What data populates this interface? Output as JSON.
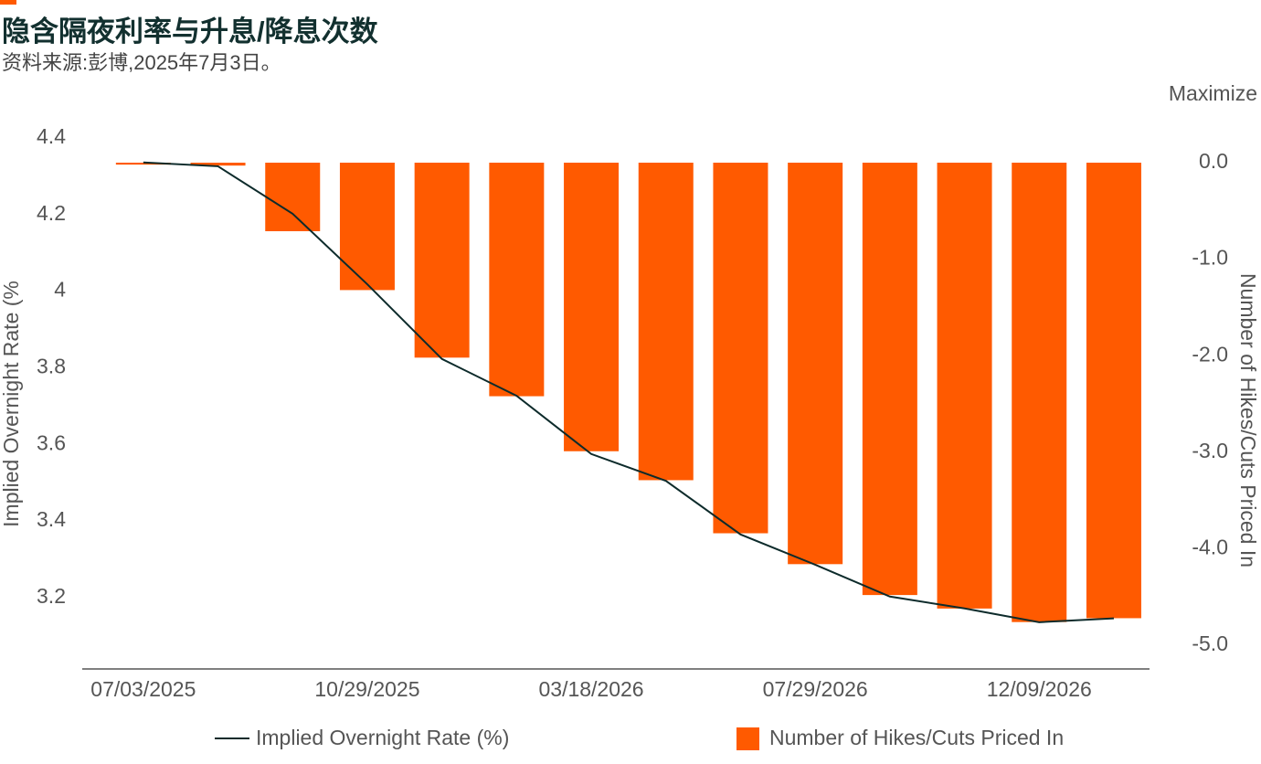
{
  "chart_data": {
    "type": "bar_line",
    "title": "隐含隔夜利率与升息/降息次数",
    "subtitle": "资料来源:彭博,2025年7月3日。",
    "button": "Maximize",
    "y_label": "Implied Overnight Rate (%",
    "y2_label": "Number of Hikes/Cuts Priced In",
    "categories": [
      "07/03/2025",
      null,
      null,
      "10/29/2025",
      null,
      null,
      "03/18/2026",
      null,
      null,
      "07/29/2026",
      null,
      null,
      "12/09/2026",
      null
    ],
    "series": [
      {
        "name": "Implied Overnight Rate (%)",
        "type": "line",
        "color": "#0d2b2b",
        "axis": "y",
        "values": [
          4.336,
          4.326,
          4.202,
          4.018,
          3.823,
          3.727,
          3.575,
          3.505,
          3.365,
          3.286,
          3.203,
          3.172,
          3.136,
          3.146
        ]
      },
      {
        "name": "Number of Hikes/Cuts Priced In",
        "type": "bar",
        "color": "#ff5a00",
        "axis": "y2",
        "values": [
          -0.02,
          -0.03,
          -0.71,
          -1.32,
          -2.02,
          -2.42,
          -2.99,
          -3.29,
          -3.84,
          -4.16,
          -4.48,
          -4.62,
          -4.76,
          -4.72
        ]
      }
    ],
    "ylim": [
      3.014,
      4.426
    ],
    "yticks": [
      3.2,
      3.4,
      3.6,
      3.8,
      4.0,
      4.2,
      4.4
    ],
    "y2lim": [
      -5.246,
      0.36
    ],
    "y2ticks": [
      {
        "value": -5,
        "label": "-5.0"
      },
      {
        "value": -4,
        "label": "-4.0"
      },
      {
        "value": -3,
        "label": "-3.0"
      },
      {
        "value": -2,
        "label": "-2.0"
      },
      {
        "value": -1,
        "label": "-1.0"
      },
      {
        "value": 0,
        "label": "0.0"
      }
    ],
    "grid": false
  }
}
